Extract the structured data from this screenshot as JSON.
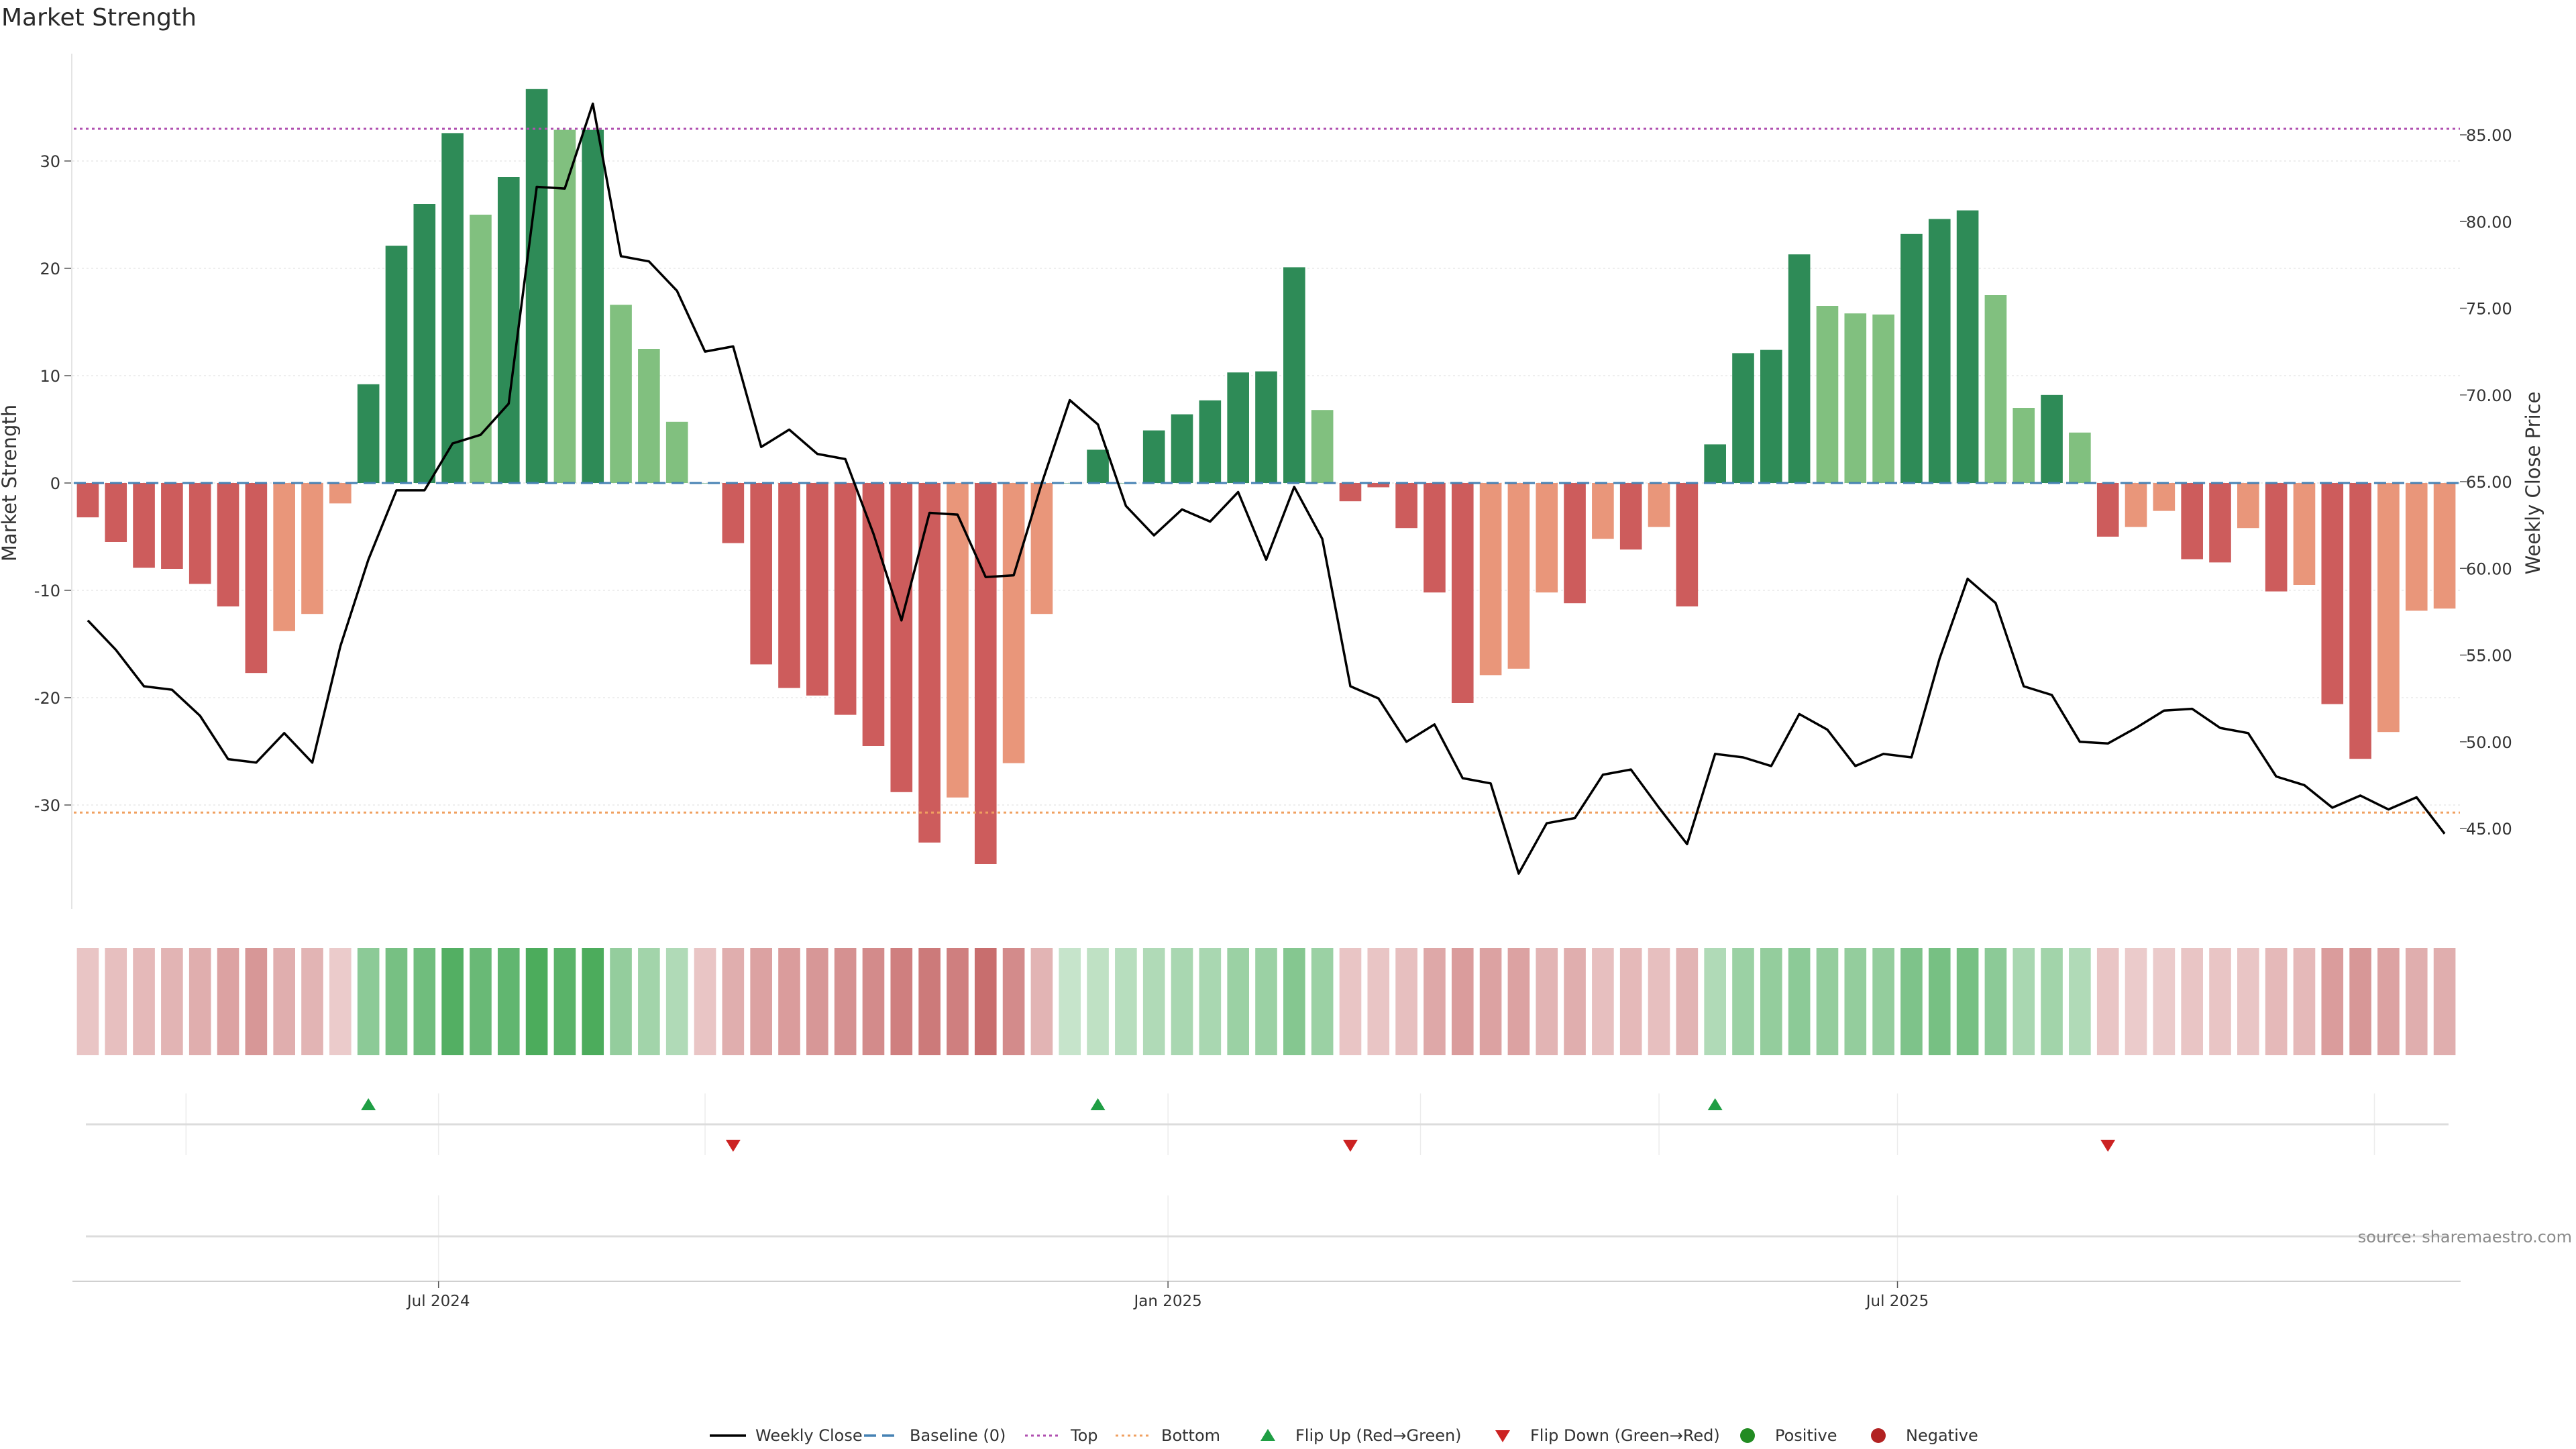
{
  "chart_data": {
    "type": "bar",
    "title": "Market Strength",
    "ylabel": "Market Strength",
    "y2label": "Weekly Close Price",
    "ylim": [
      -40,
      38
    ],
    "y2lim": [
      40.5,
      88
    ],
    "yticks": [
      30,
      20,
      10,
      0,
      -10,
      -20,
      -30
    ],
    "y2ticks": [
      85.0,
      80.0,
      75.0,
      70.0,
      65.0,
      60.0,
      55.0,
      50.0,
      45.0
    ],
    "top_level": 33,
    "bottom_level": -30.7,
    "x_tick_labels": [
      {
        "index": 13,
        "label": "Jul 2024"
      },
      {
        "index": 39,
        "label": "Jan 2025"
      },
      {
        "index": 65,
        "label": "Jul 2025"
      }
    ],
    "strength": [
      -3.2,
      -5.5,
      -7.9,
      -8.0,
      -9.4,
      -11.5,
      -17.7,
      -13.8,
      -12.2,
      -1.9,
      9.2,
      22.1,
      26.0,
      32.6,
      25.0,
      28.5,
      36.7,
      32.9,
      32.9,
      16.6,
      12.5,
      5.7,
      0,
      -5.6,
      -16.9,
      -19.1,
      -19.8,
      -21.6,
      -24.5,
      -28.8,
      -33.5,
      -29.3,
      -35.5,
      -26.1,
      -12.2,
      0,
      3.1,
      0,
      4.9,
      6.4,
      7.7,
      10.3,
      10.4,
      20.1,
      6.8,
      -1.7,
      -0.4,
      -4.2,
      -10.2,
      -20.5,
      -17.9,
      -17.3,
      -10.2,
      -11.2,
      -5.2,
      -6.2,
      -4.1,
      -11.5,
      3.6,
      12.1,
      12.4,
      21.3,
      16.5,
      15.8,
      15.7,
      23.2,
      24.6,
      25.4,
      17.5,
      7.0,
      8.2,
      4.7,
      -5.0,
      -4.1,
      -2.6,
      -7.1,
      -7.4,
      -4.2,
      -10.1,
      -9.5,
      -20.6,
      -25.7,
      -23.2,
      -11.9,
      -11.7
    ],
    "shade": [
      "dark",
      "dark",
      "dark",
      "dark",
      "dark",
      "dark",
      "dark",
      "light",
      "light",
      "light",
      "dark",
      "dark",
      "dark",
      "dark",
      "light",
      "dark",
      "dark",
      "light",
      "dark",
      "light",
      "light",
      "light",
      "dark",
      "dark",
      "dark",
      "dark",
      "dark",
      "dark",
      "dark",
      "dark",
      "dark",
      "light",
      "dark",
      "light",
      "light",
      "dark",
      "dark",
      "dark",
      "dark",
      "dark",
      "dark",
      "dark",
      "dark",
      "dark",
      "light",
      "dark",
      "dark",
      "dark",
      "dark",
      "dark",
      "light",
      "light",
      "light",
      "dark",
      "light",
      "dark",
      "light",
      "dark",
      "dark",
      "dark",
      "dark",
      "dark",
      "light",
      "light",
      "light",
      "dark",
      "dark",
      "dark",
      "light",
      "light",
      "dark",
      "light",
      "dark",
      "light",
      "light",
      "dark",
      "dark",
      "light",
      "dark",
      "light",
      "dark",
      "dark",
      "light",
      "light",
      "light"
    ],
    "weekly_close": [
      57.0,
      55.3,
      53.2,
      53.0,
      51.5,
      49.0,
      48.8,
      50.5,
      48.8,
      55.5,
      60.5,
      64.5,
      64.5,
      67.2,
      67.7,
      69.5,
      82.0,
      81.9,
      86.8,
      78.0,
      77.7,
      76.0,
      72.5,
      72.8,
      67.0,
      68.0,
      66.6,
      66.3,
      62.0,
      57.0,
      63.2,
      63.1,
      59.5,
      59.6,
      64.9,
      69.7,
      68.3,
      63.6,
      61.9,
      63.4,
      62.7,
      64.4,
      60.5,
      64.7,
      61.7,
      53.2,
      52.5,
      50.0,
      51.0,
      47.9,
      47.6,
      42.4,
      45.3,
      45.6,
      48.1,
      48.4,
      46.2,
      44.1,
      49.3,
      49.1,
      48.6,
      51.6,
      50.7,
      48.6,
      49.3,
      49.1,
      54.8,
      59.4,
      58.0,
      53.2,
      52.7,
      50.0,
      49.9,
      50.8,
      51.8,
      51.9,
      50.8,
      50.5,
      48.0,
      47.5,
      46.2,
      46.9,
      46.1,
      46.8,
      44.7
    ],
    "heat_row": [
      -0.25,
      -0.3,
      -0.35,
      -0.4,
      -0.45,
      -0.55,
      -0.65,
      -0.45,
      -0.4,
      -0.2,
      0.55,
      0.7,
      0.75,
      0.95,
      0.8,
      0.85,
      1.0,
      0.9,
      1.0,
      0.5,
      0.4,
      0.3,
      -0.25,
      -0.45,
      -0.55,
      -0.6,
      -0.65,
      -0.7,
      -0.75,
      -0.85,
      -0.9,
      -0.85,
      -1.0,
      -0.75,
      -0.4,
      0.15,
      0.2,
      0.25,
      0.3,
      0.35,
      0.35,
      0.45,
      0.45,
      0.6,
      0.45,
      -0.25,
      -0.25,
      -0.3,
      -0.5,
      -0.6,
      -0.55,
      -0.55,
      -0.4,
      -0.45,
      -0.3,
      -0.35,
      -0.3,
      -0.4,
      0.3,
      0.45,
      0.5,
      0.55,
      0.5,
      0.5,
      0.5,
      0.65,
      0.7,
      0.7,
      0.55,
      0.35,
      0.4,
      0.3,
      -0.25,
      -0.2,
      -0.2,
      -0.25,
      -0.25,
      -0.25,
      -0.35,
      -0.35,
      -0.6,
      -0.65,
      -0.55,
      -0.45,
      -0.45
    ],
    "flips": [
      {
        "index": 10,
        "direction": "up"
      },
      {
        "index": 23,
        "direction": "down"
      },
      {
        "index": 36,
        "direction": "up"
      },
      {
        "index": 45,
        "direction": "down"
      },
      {
        "index": 58,
        "direction": "up"
      },
      {
        "index": 72,
        "direction": "down"
      }
    ],
    "colors": {
      "pos_dark": "#2e8b57",
      "pos_light": "#81c07f",
      "neg_dark": "#cd5c5c",
      "neg_light": "#e9967a",
      "price_line": "#000000",
      "baseline": "#4682b4",
      "top_line": "#b050b0",
      "bottom_line": "#f0a060",
      "flip_up": "#1f9e44",
      "flip_down": "#cc2222",
      "positive_dot": "#228b22",
      "negative_dot": "#b22222"
    },
    "legend": [
      {
        "key": "weekly_close",
        "label": "Weekly Close"
      },
      {
        "key": "baseline",
        "label": "Baseline (0)"
      },
      {
        "key": "top",
        "label": "Top"
      },
      {
        "key": "bottom",
        "label": "Bottom"
      },
      {
        "key": "flip_up",
        "label": "Flip Up (Red→Green)"
      },
      {
        "key": "flip_down",
        "label": "Flip Down (Green→Red)"
      },
      {
        "key": "positive",
        "label": "Positive"
      },
      {
        "key": "negative",
        "label": "Negative"
      }
    ],
    "source": "source: sharemaestro.com"
  }
}
